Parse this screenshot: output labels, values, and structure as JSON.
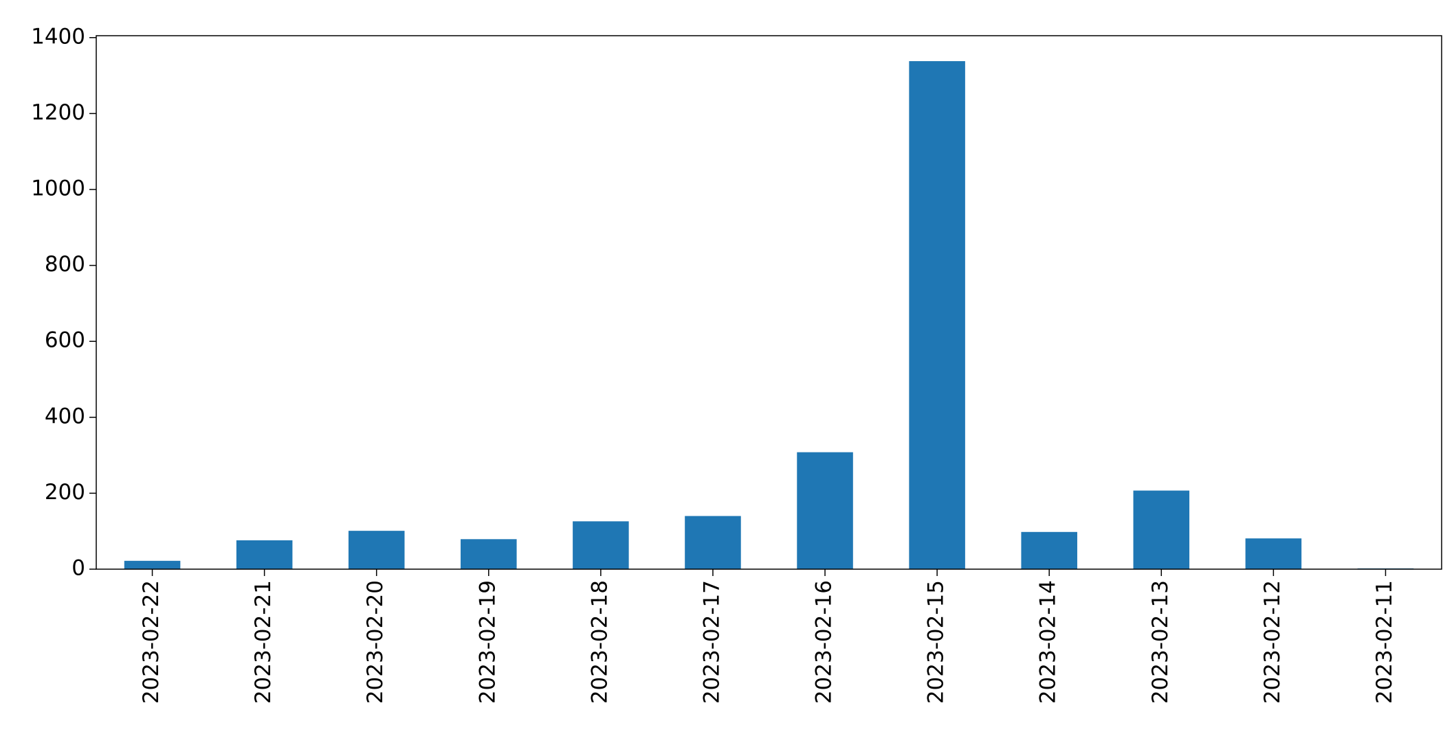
{
  "chart_data": {
    "type": "bar",
    "categories": [
      "2023-02-22",
      "2023-02-21",
      "2023-02-20",
      "2023-02-19",
      "2023-02-18",
      "2023-02-17",
      "2023-02-16",
      "2023-02-15",
      "2023-02-14",
      "2023-02-13",
      "2023-02-12",
      "2023-02-11"
    ],
    "values": [
      22,
      76,
      101,
      79,
      126,
      140,
      308,
      1338,
      98,
      207,
      81,
      2
    ],
    "color": "#1f77b4",
    "ylim": [
      0,
      1405
    ],
    "yticks": [
      0,
      200,
      400,
      600,
      800,
      1000,
      1200,
      1400
    ],
    "grid": false
  }
}
